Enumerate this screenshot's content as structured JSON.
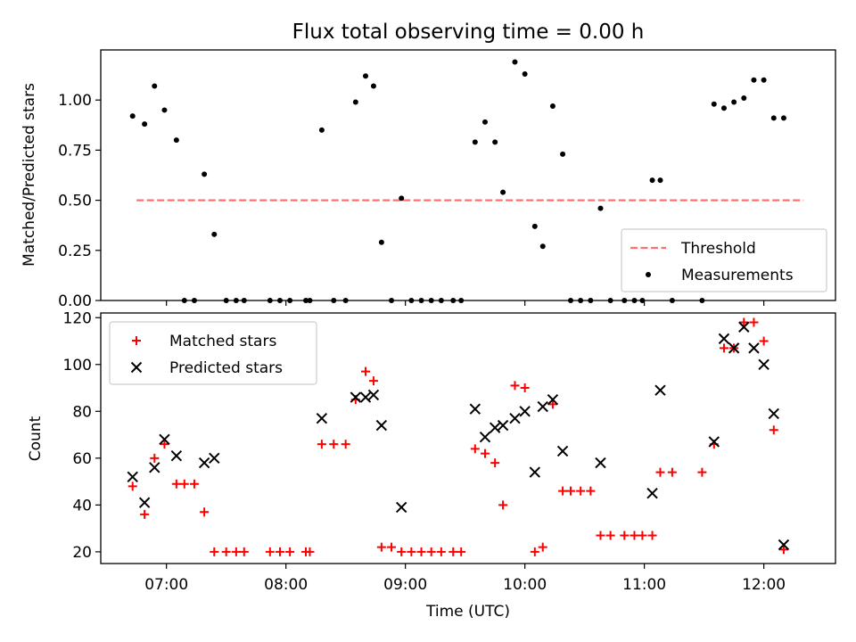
{
  "chart_data": [
    {
      "type": "scatter",
      "title": "Flux total observing time = 0.00 h",
      "ylabel": "Matched/Predicted stars",
      "xlabel": "",
      "xlim": [
        "06:27",
        "12:36"
      ],
      "ylim": [
        0,
        1.25
      ],
      "yticks": [
        {
          "value": 0.0,
          "label": "0.00"
        },
        {
          "value": 0.25,
          "label": "0.25"
        },
        {
          "value": 0.5,
          "label": "0.50"
        },
        {
          "value": 0.75,
          "label": "0.75"
        },
        {
          "value": 1.0,
          "label": "1.00"
        }
      ],
      "xticks": [
        "07:00",
        "08:00",
        "09:00",
        "10:00",
        "11:00",
        "12:00"
      ],
      "legend": {
        "placement": "lower right"
      },
      "threshold": {
        "name": "Threshold",
        "value": 0.5,
        "x_range": [
          "06:45",
          "12:20"
        ],
        "color": "#ff7070"
      },
      "series": [
        {
          "name": "Measurements",
          "color": "#000000",
          "points": [
            [
              "06:43",
              0.92
            ],
            [
              "06:49",
              0.88
            ],
            [
              "06:54",
              1.07
            ],
            [
              "06:59",
              0.95
            ],
            [
              "07:05",
              0.8
            ],
            [
              "07:09",
              0.0
            ],
            [
              "07:14",
              0.0
            ],
            [
              "07:19",
              0.63
            ],
            [
              "07:24",
              0.33
            ],
            [
              "07:30",
              0.0
            ],
            [
              "07:35",
              0.0
            ],
            [
              "07:39",
              0.0
            ],
            [
              "07:52",
              0.0
            ],
            [
              "07:57",
              0.0
            ],
            [
              "08:02",
              0.0
            ],
            [
              "08:10",
              0.0
            ],
            [
              "08:12",
              0.0
            ],
            [
              "08:18",
              0.85
            ],
            [
              "08:24",
              0.0
            ],
            [
              "08:30",
              0.0
            ],
            [
              "08:35",
              0.99
            ],
            [
              "08:40",
              1.12
            ],
            [
              "08:44",
              1.07
            ],
            [
              "08:48",
              0.29
            ],
            [
              "08:53",
              0.0
            ],
            [
              "08:58",
              0.51
            ],
            [
              "09:03",
              0.0
            ],
            [
              "09:08",
              0.0
            ],
            [
              "09:13",
              0.0
            ],
            [
              "09:18",
              0.0
            ],
            [
              "09:24",
              0.0
            ],
            [
              "09:28",
              0.0
            ],
            [
              "09:35",
              0.79
            ],
            [
              "09:40",
              0.89
            ],
            [
              "09:45",
              0.79
            ],
            [
              "09:49",
              0.54
            ],
            [
              "09:55",
              1.19
            ],
            [
              "10:00",
              1.13
            ],
            [
              "10:05",
              0.37
            ],
            [
              "10:09",
              0.27
            ],
            [
              "10:14",
              0.97
            ],
            [
              "10:19",
              0.73
            ],
            [
              "10:23",
              0.0
            ],
            [
              "10:28",
              0.0
            ],
            [
              "10:33",
              0.0
            ],
            [
              "10:38",
              0.46
            ],
            [
              "10:43",
              0.0
            ],
            [
              "10:50",
              0.0
            ],
            [
              "10:55",
              0.0
            ],
            [
              "10:59",
              0.0
            ],
            [
              "11:04",
              0.6
            ],
            [
              "11:08",
              0.6
            ],
            [
              "11:14",
              0.0
            ],
            [
              "11:29",
              0.0
            ],
            [
              "11:35",
              0.98
            ],
            [
              "11:40",
              0.96
            ],
            [
              "11:45",
              0.99
            ],
            [
              "11:50",
              1.01
            ],
            [
              "11:55",
              1.1
            ],
            [
              "12:00",
              1.1
            ],
            [
              "12:05",
              0.91
            ],
            [
              "12:10",
              0.91
            ]
          ]
        }
      ]
    },
    {
      "type": "scatter",
      "title": "",
      "ylabel": "Count",
      "xlabel": "Time (UTC)",
      "xlim": [
        "06:27",
        "12:36"
      ],
      "ylim": [
        15,
        122
      ],
      "yticks": [
        20,
        40,
        60,
        80,
        100,
        120
      ],
      "xticks": [
        "07:00",
        "08:00",
        "09:00",
        "10:00",
        "11:00",
        "12:00"
      ],
      "legend": {
        "placement": "upper left"
      },
      "series": [
        {
          "name": "Matched stars",
          "marker": "+",
          "color": "#ff0000",
          "points": [
            [
              "06:43",
              48
            ],
            [
              "06:49",
              36
            ],
            [
              "06:54",
              60
            ],
            [
              "06:59",
              66
            ],
            [
              "07:05",
              49
            ],
            [
              "07:09",
              49
            ],
            [
              "07:14",
              49
            ],
            [
              "07:19",
              37
            ],
            [
              "07:24",
              20
            ],
            [
              "07:30",
              20
            ],
            [
              "07:35",
              20
            ],
            [
              "07:39",
              20
            ],
            [
              "07:52",
              20
            ],
            [
              "07:57",
              20
            ],
            [
              "08:02",
              20
            ],
            [
              "08:10",
              20
            ],
            [
              "08:12",
              20
            ],
            [
              "08:18",
              66
            ],
            [
              "08:24",
              66
            ],
            [
              "08:30",
              66
            ],
            [
              "08:35",
              85
            ],
            [
              "08:40",
              97
            ],
            [
              "08:44",
              93
            ],
            [
              "08:48",
              22
            ],
            [
              "08:53",
              22
            ],
            [
              "08:58",
              20
            ],
            [
              "09:03",
              20
            ],
            [
              "09:08",
              20
            ],
            [
              "09:13",
              20
            ],
            [
              "09:18",
              20
            ],
            [
              "09:24",
              20
            ],
            [
              "09:28",
              20
            ],
            [
              "09:35",
              64
            ],
            [
              "09:40",
              62
            ],
            [
              "09:45",
              58
            ],
            [
              "09:49",
              40
            ],
            [
              "09:55",
              91
            ],
            [
              "10:00",
              90
            ],
            [
              "10:05",
              20
            ],
            [
              "10:09",
              22
            ],
            [
              "10:14",
              83
            ],
            [
              "10:19",
              46
            ],
            [
              "10:23",
              46
            ],
            [
              "10:28",
              46
            ],
            [
              "10:33",
              46
            ],
            [
              "10:38",
              27
            ],
            [
              "10:43",
              27
            ],
            [
              "10:50",
              27
            ],
            [
              "10:55",
              27
            ],
            [
              "10:59",
              27
            ],
            [
              "11:04",
              27
            ],
            [
              "11:08",
              54
            ],
            [
              "11:14",
              54
            ],
            [
              "11:29",
              54
            ],
            [
              "11:35",
              66
            ],
            [
              "11:40",
              107
            ],
            [
              "11:45",
              107
            ],
            [
              "11:50",
              118
            ],
            [
              "11:55",
              118
            ],
            [
              "12:00",
              110
            ],
            [
              "12:05",
              72
            ],
            [
              "12:10",
              21
            ]
          ]
        },
        {
          "name": "Predicted stars",
          "marker": "x",
          "color": "#000000",
          "points": [
            [
              "06:43",
              52
            ],
            [
              "06:49",
              41
            ],
            [
              "06:54",
              56
            ],
            [
              "06:59",
              68
            ],
            [
              "07:05",
              61
            ],
            [
              "07:19",
              58
            ],
            [
              "07:24",
              60
            ],
            [
              "08:18",
              77
            ],
            [
              "08:35",
              86
            ],
            [
              "08:40",
              86
            ],
            [
              "08:44",
              87
            ],
            [
              "08:48",
              74
            ],
            [
              "08:58",
              39
            ],
            [
              "09:35",
              81
            ],
            [
              "09:40",
              69
            ],
            [
              "09:45",
              73
            ],
            [
              "09:49",
              74
            ],
            [
              "09:55",
              77
            ],
            [
              "10:00",
              80
            ],
            [
              "10:05",
              54
            ],
            [
              "10:09",
              82
            ],
            [
              "10:14",
              85
            ],
            [
              "10:19",
              63
            ],
            [
              "10:38",
              58
            ],
            [
              "11:04",
              45
            ],
            [
              "11:08",
              89
            ],
            [
              "11:35",
              67
            ],
            [
              "11:40",
              111
            ],
            [
              "11:45",
              107
            ],
            [
              "11:50",
              116
            ],
            [
              "11:55",
              107
            ],
            [
              "12:00",
              100
            ],
            [
              "12:05",
              79
            ],
            [
              "12:10",
              23
            ]
          ]
        }
      ]
    }
  ]
}
